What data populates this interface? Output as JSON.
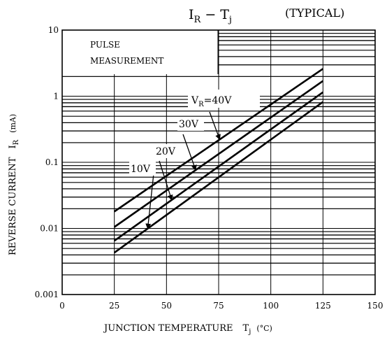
{
  "chart_data": {
    "type": "line",
    "title": "I_R − T_j",
    "title_main": "I",
    "title_main_sub": "R",
    "title_dash": "−",
    "title_var": "T",
    "title_var_sub": "j",
    "title_note": "(TYPICAL)",
    "xlabel": "JUNCTION TEMPERATURE",
    "xlabel_symbol": "T",
    "xlabel_symbol_sub": "j",
    "xlabel_unit": "(°C)",
    "ylabel": "REVERSE CURRENT",
    "ylabel_symbol": "I",
    "ylabel_symbol_sub": "R",
    "ylabel_unit": "(mA)",
    "xlim": [
      0,
      150
    ],
    "ylim": [
      0.001,
      10
    ],
    "y_scale": "log",
    "grid": true,
    "x_ticks": [
      "0",
      "25",
      "50",
      "75",
      "100",
      "125",
      "150"
    ],
    "y_ticks": [
      "0.001",
      "0.01",
      "0.1",
      "1",
      "10"
    ],
    "annotation_box": [
      "PULSE",
      "MEASUREMENT"
    ],
    "series_label_prefix": "V",
    "series_label_prefix_sub": "R",
    "series_label_eq": "=",
    "series": [
      {
        "name": "40V",
        "x": [
          25,
          125
        ],
        "y": [
          0.018,
          2.6
        ]
      },
      {
        "name": "30V",
        "x": [
          25,
          125
        ],
        "y": [
          0.0105,
          1.7
        ]
      },
      {
        "name": "20V",
        "x": [
          25,
          125
        ],
        "y": [
          0.0065,
          1.15
        ]
      },
      {
        "name": "10V",
        "x": [
          25,
          125
        ],
        "y": [
          0.0043,
          0.82
        ]
      }
    ]
  }
}
